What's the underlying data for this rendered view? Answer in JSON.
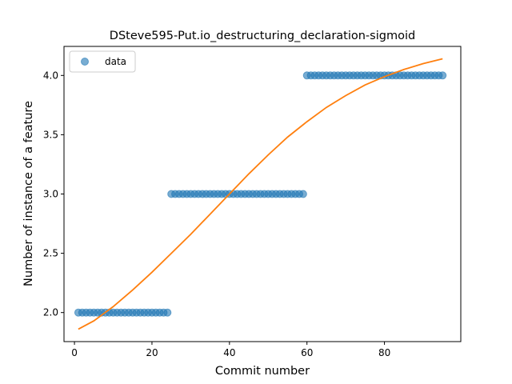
{
  "chart_data": {
    "type": "scatter",
    "title": "DSteve595-Put.io_destructuring_declaration-sigmoid",
    "xlabel": "Commit number",
    "ylabel": "Number of instance of a feature",
    "xlim": [
      -2.7,
      99.7
    ],
    "ylim": [
      1.755,
      4.245
    ],
    "xticks": [
      0,
      20,
      40,
      60,
      80
    ],
    "yticks": [
      2.0,
      2.5,
      3.0,
      3.5,
      4.0
    ],
    "xtick_labels": [
      "0",
      "20",
      "40",
      "60",
      "80"
    ],
    "ytick_labels": [
      "2.0",
      "2.5",
      "3.0",
      "3.5",
      "4.0"
    ],
    "legend": {
      "position": "upper-left",
      "entries": [
        "data"
      ]
    },
    "grid": false,
    "series": [
      {
        "name": "data",
        "kind": "scatter",
        "color": "#1f77b4",
        "segments": [
          {
            "x_start": 1,
            "x_end": 24,
            "y": 2
          },
          {
            "x_start": 25,
            "x_end": 59,
            "y": 3
          },
          {
            "x_start": 60,
            "x_end": 95,
            "y": 4
          }
        ]
      },
      {
        "kind": "line",
        "color": "#ff7f0e",
        "x": [
          1,
          5,
          10,
          15,
          20,
          25,
          30,
          35,
          40,
          45,
          50,
          55,
          60,
          65,
          70,
          75,
          80,
          85,
          90,
          95
        ],
        "y": [
          1.86,
          1.93,
          2.05,
          2.19,
          2.34,
          2.5,
          2.66,
          2.83,
          3.0,
          3.17,
          3.33,
          3.48,
          3.61,
          3.73,
          3.83,
          3.92,
          3.99,
          4.05,
          4.1,
          4.14
        ]
      }
    ]
  }
}
